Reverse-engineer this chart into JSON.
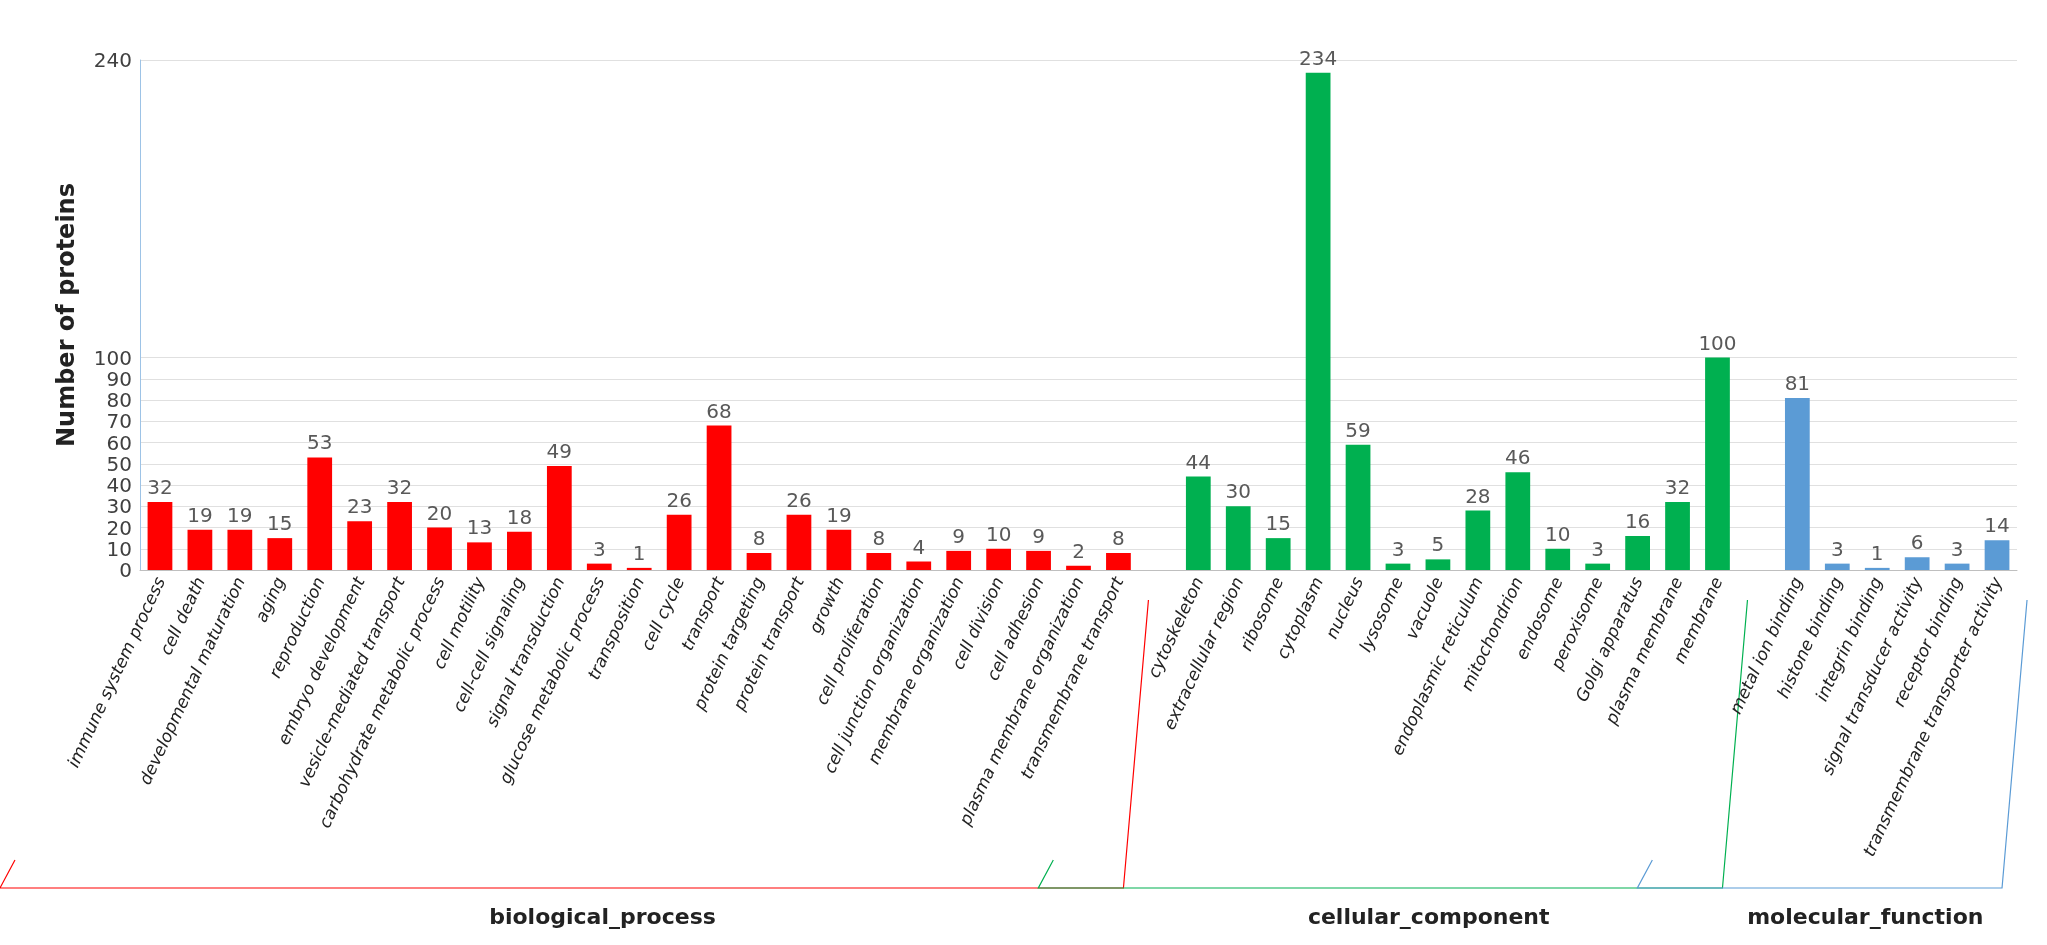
{
  "chart_data": {
    "type": "bar",
    "ylabel": "Number of proteins",
    "categories": [
      "immune system process",
      "cell death",
      "developmental maturation",
      "aging",
      "reproduction",
      "embryo development",
      "vesicle-mediated transport",
      "carbohydrate metabolic process",
      "cell motility",
      "cell-cell signaling",
      "signal transduction",
      "glucose metabolic process",
      "transposition",
      "cell cycle",
      "transport",
      "protein targeting",
      "protein transport",
      "growth",
      "cell proliferation",
      "cell junction organization",
      "membrane organization",
      "cell division",
      "cell adhesion",
      "plasma membrane organization",
      "transmembrane transport",
      null,
      "cytoskeleton",
      "extracellular region",
      "ribosome",
      "cytoplasm",
      "nucleus",
      "lysosome",
      "vacuole",
      "endoplasmic reticulum",
      "mitochondrion",
      "endosome",
      "peroxisome",
      "Golgi apparatus",
      "plasma membrane",
      "membrane",
      null,
      "metal ion binding",
      "histone binding",
      "integrin binding",
      "signal transducer activity",
      "receptor binding",
      "transmembrane transporter activity"
    ],
    "series": [
      {
        "color": "#ff0000",
        "values": [
          32,
          19,
          19,
          15,
          53,
          23,
          32,
          20,
          13,
          18,
          49,
          3,
          1,
          26,
          68,
          8,
          26,
          19,
          8,
          4,
          9,
          10,
          9,
          2,
          8,
          null,
          null,
          null,
          null,
          null,
          null,
          null,
          null,
          null,
          null,
          null,
          null,
          null,
          null,
          null,
          null,
          null,
          null,
          null,
          null,
          null,
          null
        ]
      },
      {
        "color": "#00b050",
        "values": [
          null,
          null,
          null,
          null,
          null,
          null,
          null,
          null,
          null,
          null,
          null,
          null,
          null,
          null,
          null,
          null,
          null,
          null,
          null,
          null,
          null,
          null,
          null,
          null,
          null,
          null,
          44,
          30,
          15,
          234,
          59,
          3,
          5,
          28,
          46,
          10,
          3,
          16,
          32,
          100,
          null,
          null,
          null,
          null,
          null,
          null,
          null
        ]
      },
      {
        "color": "#5b9bd5",
        "values": [
          null,
          null,
          null,
          null,
          null,
          null,
          null,
          null,
          null,
          null,
          null,
          null,
          null,
          null,
          null,
          null,
          null,
          null,
          null,
          null,
          null,
          null,
          null,
          null,
          null,
          null,
          null,
          null,
          null,
          null,
          null,
          null,
          null,
          null,
          null,
          null,
          null,
          null,
          null,
          null,
          null,
          81,
          3,
          1,
          6,
          3,
          14
        ]
      }
    ],
    "ylim": [
      0,
      240
    ],
    "yticks": [
      0,
      10,
      20,
      30,
      40,
      50,
      60,
      70,
      80,
      90,
      100,
      240
    ],
    "grid": "y",
    "data_labels": true,
    "annotations": [
      "biological_process",
      "cellular_component",
      "molecular_function"
    ]
  }
}
